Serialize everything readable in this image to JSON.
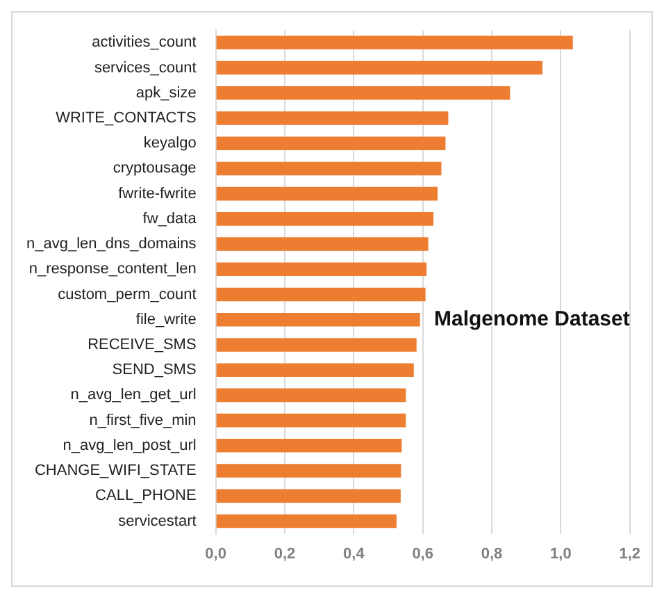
{
  "chart_data": {
    "type": "bar",
    "orientation": "horizontal",
    "categories": [
      "activities_count",
      "services_count",
      "apk_size",
      "WRITE_CONTACTS",
      "keyalgo",
      "cryptousage",
      "fwrite-fwrite",
      "fw_data",
      "n_avg_len_dns_domains",
      "n_response_content_len",
      "custom_perm_count",
      "file_write",
      "RECEIVE_SMS",
      "SEND_SMS",
      "n_avg_len_get_url",
      "n_first_five_min",
      "n_avg_len_post_url",
      "CHANGE_WIFI_STATE",
      "CALL_PHONE",
      "servicestart"
    ],
    "values": [
      1.035,
      0.947,
      0.853,
      0.674,
      0.666,
      0.654,
      0.643,
      0.631,
      0.616,
      0.611,
      0.608,
      0.592,
      0.582,
      0.574,
      0.551,
      0.551,
      0.539,
      0.537,
      0.536,
      0.524
    ],
    "color": "#ed7d31",
    "xlim": [
      0,
      1.2
    ],
    "xticks": [
      {
        "value": 0,
        "label": "0,0"
      },
      {
        "value": 0.2,
        "label": "0,2"
      },
      {
        "value": 0.4,
        "label": "0,4"
      },
      {
        "value": 0.6,
        "label": "0,6"
      },
      {
        "value": 0.8,
        "label": "0,8"
      },
      {
        "value": 1.0,
        "label": "1,0"
      },
      {
        "value": 1.2,
        "label": "1,2"
      }
    ],
    "grid": "x",
    "legend": false,
    "annotations": [
      "Malgenome Dataset"
    ]
  }
}
